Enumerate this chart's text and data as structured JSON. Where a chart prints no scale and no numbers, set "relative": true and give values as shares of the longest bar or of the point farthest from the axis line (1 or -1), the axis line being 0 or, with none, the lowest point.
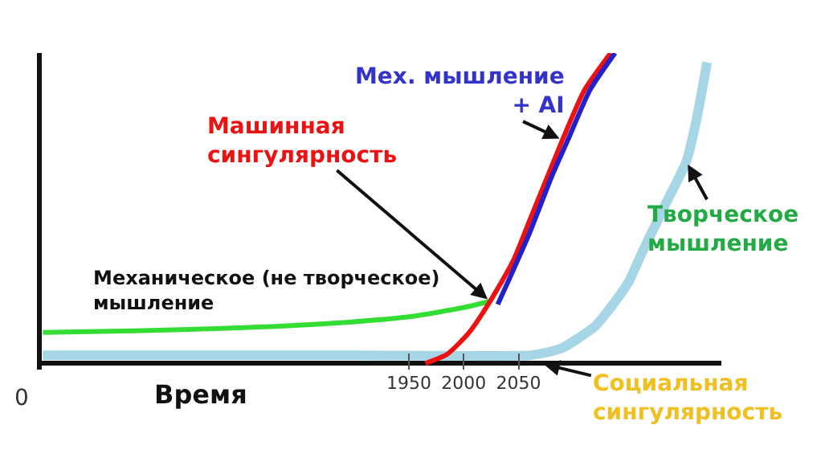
{
  "chart_data": {
    "type": "line",
    "relative": true,
    "xlabel": "Время",
    "xlim": [
      1615,
      2235
    ],
    "xticks": [
      1950,
      2000,
      2050
    ],
    "tick_labels": "x",
    "grid": false,
    "marker": "none",
    "line_style": "solid",
    "series": [
      {
        "color": "#33dd33",
        "x": [
          1616,
          1700,
          1800,
          1884,
          1950,
          2000,
          2024
        ],
        "values": [
          0.1,
          0.105,
          0.115,
          0.13,
          0.15,
          0.18,
          0.2
        ]
      },
      {
        "color": "#a6d6e6",
        "x": [
          1616,
          1900,
          2060,
          2075,
          2090,
          2104,
          2120,
          2134,
          2150,
          2163,
          2185,
          2203,
          2212,
          2222
        ],
        "values": [
          0.026,
          0.026,
          0.026,
          0.035,
          0.05,
          0.08,
          0.12,
          0.18,
          0.26,
          0.36,
          0.52,
          0.65,
          0.78,
          0.97
        ]
      },
      {
        "color": "#ee1111",
        "x": [
          1965,
          1985,
          2005,
          2024,
          2045,
          2060,
          2075,
          2090,
          2110,
          2134
        ],
        "values": [
          0,
          0.03,
          0.1,
          0.2,
          0.33,
          0.46,
          0.59,
          0.72,
          0.88,
          1
        ]
      },
      {
        "color": "#2222cc",
        "x": [
          2031,
          2040,
          2060,
          2080,
          2095,
          2115,
          2138
        ],
        "values": [
          0.19,
          0.26,
          0.42,
          0.6,
          0.72,
          0.88,
          1
        ]
      }
    ],
    "annotations": [
      {
        "text": "Механическое (не творческое)\nмышление",
        "x": 1750,
        "y": 0.11
      },
      {
        "text": "Машинная\nсингулярность",
        "x": 2024,
        "y": 0.2
      },
      {
        "text": "Мех. мышление\n+ AI",
        "x": 2090,
        "y": 0.72
      },
      {
        "text": "Творческое\nмышление",
        "x": 2203,
        "y": 0.65
      },
      {
        "text": "Социальная\nсингулярность",
        "x": 2070,
        "y": 0
      },
      "0"
    ]
  }
}
